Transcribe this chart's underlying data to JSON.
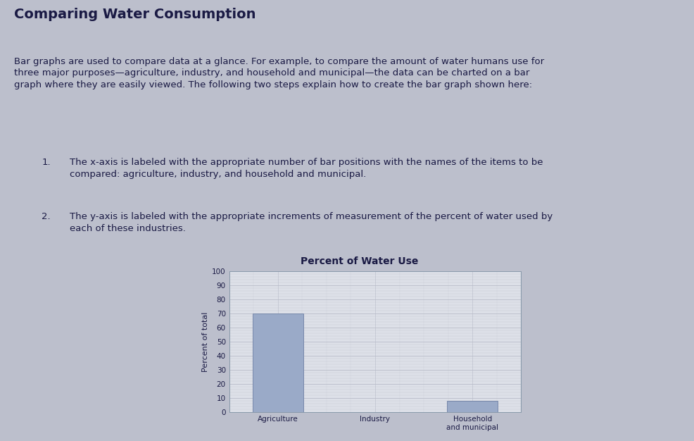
{
  "title": "Percent of Water Use",
  "ylabel": "Percent of total",
  "categories": [
    "Agriculture",
    "Industry",
    "Household\nand municipal"
  ],
  "values": [
    70,
    0,
    8
  ],
  "bar_color": "#9aaac8",
  "ylim": [
    0,
    100
  ],
  "yticks": [
    0,
    10,
    20,
    30,
    40,
    50,
    60,
    70,
    80,
    90,
    100
  ],
  "chart_bg_inner": "#dde0e8",
  "chart_bg_outer": "#cdd0da",
  "page_bg": "#bcbfcc",
  "grid_color": "#b8bcc8",
  "title_fontsize": 10,
  "ylabel_fontsize": 8,
  "tick_fontsize": 7.5,
  "bar_edge_color": "#7788aa",
  "text_color": "#1a1a44",
  "page_title": "Comparing Water Consumption",
  "body_text": "Bar graphs are used to compare data at a glance. For example, to compare the amount of water humans use for\nthree major purposes—agriculture, industry, and household and municipal—the data can be charted on a bar\ngraph where they are easily viewed. The following two steps explain how to create the bar graph shown here:",
  "step1_num": "1.",
  "step1_text": "The x-axis is labeled with the appropriate number of bar positions with the names of the items to be\nсompared: agriculture, industry, and household and municipal.",
  "step2_num": "2.",
  "step2_text": "The y-axis is labeled with the appropriate increments of measurement of the percent of water used by\neach of these industries."
}
